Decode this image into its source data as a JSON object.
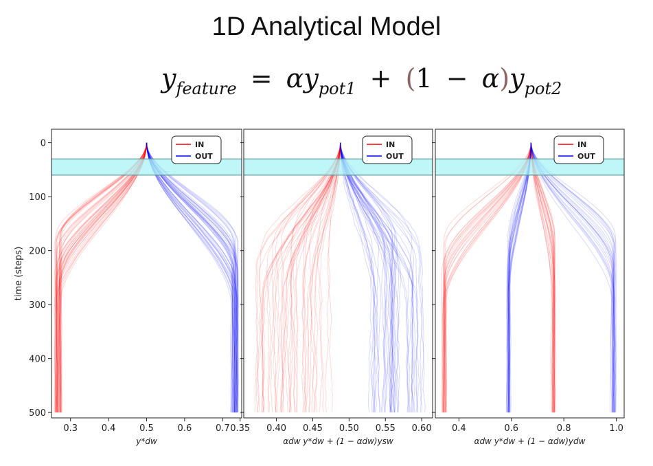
{
  "slide": {
    "title": "1D Analytical Model",
    "equation": {
      "lhs": "y",
      "lhs_sub": "feature",
      "eq": "=",
      "term1_coef": "α",
      "term1_var": "y",
      "term1_sub": "pot1",
      "plus": "+",
      "open_paren": "(",
      "one": "1",
      "minus": "−",
      "alpha": "α",
      "close_paren": ")",
      "term2_var": "y",
      "term2_sub": "pot2"
    }
  },
  "colors": {
    "in": "#ff0000",
    "out": "#0000ff",
    "band": "#aaf3f5",
    "band_edge": "#5e8f8f"
  },
  "chart_data": [
    {
      "type": "line",
      "xlabel": "y*dw",
      "ylabel": "time (steps)",
      "xlim": [
        0.25,
        0.75
      ],
      "ylim": [
        510,
        -25
      ],
      "xticks": [
        0.3,
        0.4,
        0.5,
        0.6,
        0.7
      ],
      "xtick_labels": [
        "0.3",
        "0.4",
        "0.5",
        "0.6",
        "0.7"
      ],
      "yticks": [
        0,
        100,
        200,
        300,
        400,
        500
      ],
      "ytick_labels": [
        "0",
        "100",
        "200",
        "300",
        "400",
        "500"
      ],
      "shaded_band": [
        30,
        60
      ],
      "legend": {
        "position": "top-right",
        "entries": [
          "IN",
          "OUT"
        ]
      },
      "series": [
        {
          "name": "IN",
          "start": {
            "x": 0.5,
            "y": 0
          },
          "end_x_range": [
            0.26,
            0.275
          ],
          "end_y": 500
        },
        {
          "name": "OUT",
          "start": {
            "x": 0.5,
            "y": 0
          },
          "end_x_range": [
            0.725,
            0.74
          ],
          "end_y": 500
        }
      ]
    },
    {
      "type": "line",
      "xlabel": "αdw y*dw + (1 − αdw)ysw",
      "ylabel": "",
      "xlim": [
        0.355,
        0.615
      ],
      "ylim": [
        510,
        -25
      ],
      "xticks": [
        0.35,
        0.4,
        0.45,
        0.5,
        0.55,
        0.6
      ],
      "xtick_labels": [
        "0.35",
        "0.40",
        "0.45",
        "0.50",
        "0.55",
        "0.60"
      ],
      "yticks": [
        0,
        100,
        200,
        300,
        400,
        500
      ],
      "shaded_band": [
        30,
        60
      ],
      "legend": {
        "position": "top-right",
        "entries": [
          "IN",
          "OUT"
        ]
      },
      "series": [
        {
          "name": "IN",
          "start": {
            "x": 0.488,
            "y": 0
          },
          "end_x_range": [
            0.37,
            0.47
          ],
          "end_y": 500
        },
        {
          "name": "OUT",
          "start": {
            "x": 0.488,
            "y": 0
          },
          "end_x_range": [
            0.53,
            0.6
          ],
          "end_y": 500
        }
      ]
    },
    {
      "type": "line",
      "xlabel": "αdw y*dw + (1 − αdw)ydw",
      "ylabel": "",
      "xlim": [
        0.31,
        1.03
      ],
      "ylim": [
        510,
        -25
      ],
      "xticks": [
        0.4,
        0.6,
        0.8,
        1.0
      ],
      "xtick_labels": [
        "0.4",
        "0.6",
        "0.8",
        "1.0"
      ],
      "yticks": [
        0,
        100,
        200,
        300,
        400,
        500
      ],
      "shaded_band": [
        30,
        60
      ],
      "legend": {
        "position": "top-right",
        "entries": [
          "IN",
          "OUT"
        ]
      },
      "series": [
        {
          "name": "IN",
          "start": {
            "x": 0.675,
            "y": 0
          },
          "end_x_values": [
            0.345,
            0.76
          ],
          "end_y": 500
        },
        {
          "name": "OUT",
          "start": {
            "x": 0.675,
            "y": 0
          },
          "end_x_values": [
            0.59,
            0.99
          ],
          "end_y": 500
        }
      ]
    }
  ]
}
